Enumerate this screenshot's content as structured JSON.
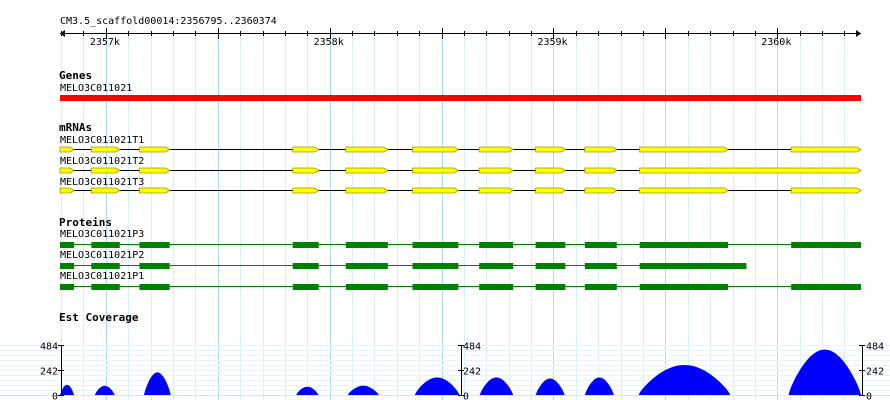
{
  "ruler": {
    "landmark": "CM3.5_scaffold00014:2356795..2360374",
    "start": 2356795,
    "end": 2360374,
    "ticks": [
      {
        "pos": 2357000,
        "label": "2357k"
      },
      {
        "pos": 2358000,
        "label": "2358k"
      },
      {
        "pos": 2359000,
        "label": "2359k"
      },
      {
        "pos": 2360000,
        "label": "2360k"
      }
    ]
  },
  "colors": {
    "gene": "#ff0000",
    "exon": "#ffff00",
    "exon_border": "#9a9a00",
    "protein": "#008000",
    "coverage": "#0000ff",
    "grid_major": "#a8dcf0",
    "grid_minor": "#d8eef8",
    "hgrid": "#c9ecf9"
  },
  "genes": {
    "title": "Genes",
    "items": [
      {
        "name": "MELO3C011021",
        "start": 2356795,
        "end": 2360374
      }
    ]
  },
  "mrnas": {
    "title": "mRNAs",
    "items": [
      {
        "name": "MELO3C011021T1",
        "start": 2356795,
        "end": 2360374,
        "exons": [
          [
            2356795,
            2356858
          ],
          [
            2356935,
            2357062
          ],
          [
            2357150,
            2357285
          ],
          [
            2357835,
            2357951
          ],
          [
            2358072,
            2358260
          ],
          [
            2358370,
            2358575
          ],
          [
            2358668,
            2358820
          ],
          [
            2358920,
            2359053
          ],
          [
            2359140,
            2359283
          ],
          [
            2359385,
            2359780
          ],
          [
            2360062,
            2360374
          ]
        ]
      },
      {
        "name": "MELO3C011021T2",
        "start": 2356795,
        "end": 2360374,
        "exons": [
          [
            2356795,
            2356858
          ],
          [
            2356935,
            2357062
          ],
          [
            2357150,
            2357285
          ],
          [
            2357835,
            2357951
          ],
          [
            2358072,
            2358260
          ],
          [
            2358370,
            2358575
          ],
          [
            2358668,
            2358820
          ],
          [
            2358920,
            2359053
          ],
          [
            2359140,
            2359283
          ],
          [
            2359385,
            2360374
          ]
        ]
      },
      {
        "name": "MELO3C011021T3",
        "start": 2356795,
        "end": 2360374,
        "exons": [
          [
            2356795,
            2356858
          ],
          [
            2356935,
            2357062
          ],
          [
            2357150,
            2357285
          ],
          [
            2357835,
            2357951
          ],
          [
            2358072,
            2358260
          ],
          [
            2358370,
            2358575
          ],
          [
            2358668,
            2358820
          ],
          [
            2358920,
            2359053
          ],
          [
            2359140,
            2359283
          ],
          [
            2359385,
            2359780
          ],
          [
            2360062,
            2360374
          ]
        ]
      }
    ]
  },
  "proteins": {
    "title": "Proteins",
    "items": [
      {
        "name": "MELO3C011021P3",
        "start": 2356795,
        "end": 2360374,
        "cds": [
          [
            2356795,
            2356858
          ],
          [
            2356935,
            2357062
          ],
          [
            2357150,
            2357285
          ],
          [
            2357835,
            2357951
          ],
          [
            2358072,
            2358260
          ],
          [
            2358370,
            2358575
          ],
          [
            2358668,
            2358820
          ],
          [
            2358920,
            2359053
          ],
          [
            2359140,
            2359283
          ],
          [
            2359385,
            2359780
          ],
          [
            2360062,
            2360374
          ]
        ]
      },
      {
        "name": "MELO3C011021P2",
        "start": 2356795,
        "end": 2359862,
        "cds": [
          [
            2356795,
            2356858
          ],
          [
            2356935,
            2357062
          ],
          [
            2357150,
            2357285
          ],
          [
            2357835,
            2357951
          ],
          [
            2358072,
            2358260
          ],
          [
            2358370,
            2358575
          ],
          [
            2358668,
            2358820
          ],
          [
            2358920,
            2359053
          ],
          [
            2359140,
            2359283
          ],
          [
            2359385,
            2359862
          ]
        ]
      },
      {
        "name": "MELO3C011021P1",
        "start": 2356795,
        "end": 2360374,
        "cds": [
          [
            2356795,
            2356858
          ],
          [
            2356935,
            2357062
          ],
          [
            2357150,
            2357285
          ],
          [
            2357835,
            2357951
          ],
          [
            2358072,
            2358260
          ],
          [
            2358370,
            2358575
          ],
          [
            2358668,
            2358820
          ],
          [
            2358920,
            2359053
          ],
          [
            2359140,
            2359283
          ],
          [
            2359385,
            2359780
          ],
          [
            2360062,
            2360374
          ]
        ]
      }
    ]
  },
  "coverage": {
    "title": "Est Coverage",
    "max": 484,
    "ticks": [
      {
        "value": 484,
        "label": "484"
      },
      {
        "value": 242,
        "label": "242"
      },
      {
        "value": 0,
        "label": "0"
      }
    ],
    "peaks": [
      [
        2356795,
        2356858,
        100
      ],
      [
        2356950,
        2357040,
        90
      ],
      [
        2357170,
        2357290,
        220
      ],
      [
        2357850,
        2357950,
        80
      ],
      [
        2358080,
        2358220,
        90
      ],
      [
        2358380,
        2358580,
        170
      ],
      [
        2358670,
        2358820,
        170
      ],
      [
        2358920,
        2359050,
        160
      ],
      [
        2359140,
        2359270,
        170
      ],
      [
        2359380,
        2359790,
        290
      ],
      [
        2360050,
        2360374,
        440
      ]
    ]
  }
}
